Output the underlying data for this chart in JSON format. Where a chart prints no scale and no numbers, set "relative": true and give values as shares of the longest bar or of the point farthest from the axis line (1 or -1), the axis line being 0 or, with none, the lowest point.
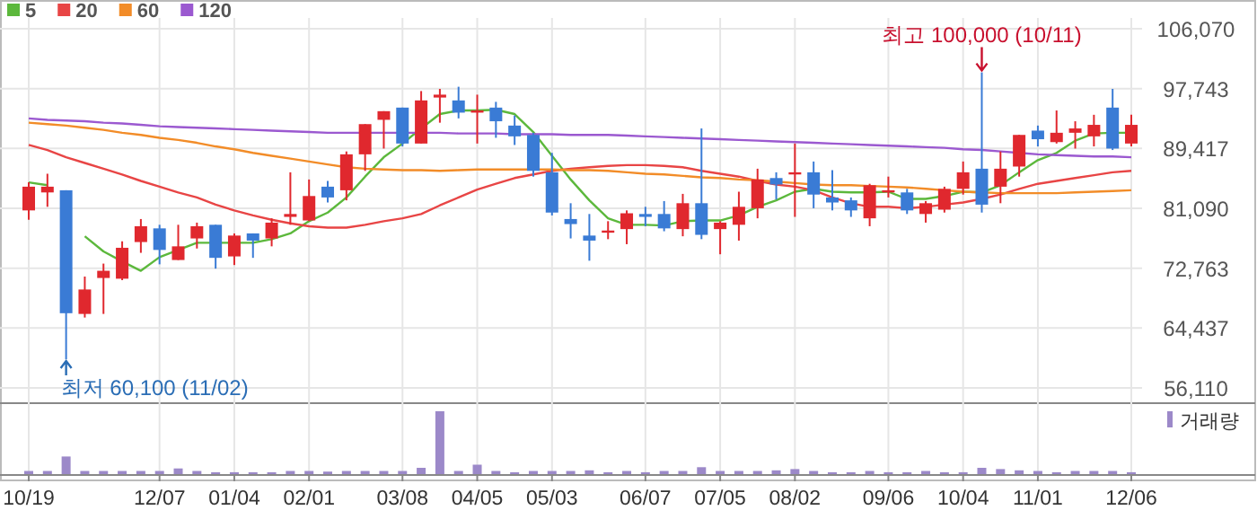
{
  "chart_data": [
    {
      "type": "candlestick",
      "grid": true,
      "legend": "top left",
      "categories": [
        "10/19",
        null,
        null,
        null,
        null,
        null,
        null,
        "12/07",
        null,
        null,
        null,
        "01/04",
        null,
        null,
        null,
        "02/01",
        null,
        null,
        null,
        null,
        "03/08",
        null,
        null,
        null,
        "04/05",
        null,
        null,
        null,
        "05/03",
        null,
        null,
        null,
        null,
        "06/07",
        null,
        null,
        null,
        "07/05",
        null,
        null,
        null,
        "08/02",
        null,
        null,
        null,
        null,
        "09/06",
        null,
        null,
        null,
        "10/04",
        null,
        null,
        null,
        "11/01",
        null,
        null,
        null,
        null,
        "12/06"
      ],
      "ylim": [
        56110,
        106070
      ],
      "yticks": [
        {
          "value": 56110,
          "label": "56,110"
        },
        {
          "value": 64437,
          "label": "64,437"
        },
        {
          "value": 72763,
          "label": "72,763"
        },
        {
          "value": 81090,
          "label": "81,090"
        },
        {
          "value": 89417,
          "label": "89,417"
        },
        {
          "value": 97743,
          "label": "97,743"
        },
        {
          "value": 106070,
          "label": "106,070"
        }
      ],
      "ohlc": [
        [
          80800,
          84700,
          79500,
          84100
        ],
        [
          83300,
          85900,
          81300,
          84100
        ],
        [
          83600,
          83600,
          60100,
          66500
        ],
        [
          66400,
          71600,
          65900,
          69800
        ],
        [
          71400,
          73400,
          66400,
          72400
        ],
        [
          71300,
          76500,
          71100,
          75600
        ],
        [
          76400,
          79600,
          74900,
          78600
        ],
        [
          78300,
          78800,
          73300,
          75300
        ],
        [
          73900,
          78800,
          73900,
          75800
        ],
        [
          76900,
          79100,
          75500,
          78600
        ],
        [
          78800,
          78800,
          72700,
          74200
        ],
        [
          74400,
          77600,
          73200,
          77300
        ],
        [
          77600,
          77600,
          74200,
          76600
        ],
        [
          76900,
          79700,
          75800,
          79100
        ],
        [
          79900,
          86100,
          78800,
          80300
        ],
        [
          79400,
          85100,
          79300,
          82800
        ],
        [
          84100,
          84900,
          81900,
          82600
        ],
        [
          83600,
          89000,
          82200,
          88600
        ],
        [
          88600,
          92800,
          86300,
          92800
        ],
        [
          93400,
          94600,
          89400,
          94600
        ],
        [
          95100,
          95100,
          89700,
          90100
        ],
        [
          90100,
          97400,
          90100,
          96100
        ],
        [
          96500,
          97700,
          93000,
          96900
        ],
        [
          96100,
          98000,
          93600,
          94400
        ],
        [
          94400,
          96900,
          90100,
          94700
        ],
        [
          95100,
          95900,
          90900,
          93200
        ],
        [
          92600,
          94000,
          89900,
          91100
        ],
        [
          91300,
          91600,
          85500,
          86300
        ],
        [
          86100,
          88800,
          80100,
          80500
        ],
        [
          79600,
          81800,
          76900,
          78900
        ],
        [
          77300,
          80300,
          73800,
          76600
        ],
        [
          77800,
          79300,
          76800,
          78000
        ],
        [
          78200,
          80800,
          76100,
          80400
        ],
        [
          80300,
          81300,
          78600,
          79900
        ],
        [
          80300,
          82100,
          77900,
          78300
        ],
        [
          78200,
          83100,
          77200,
          81800
        ],
        [
          81800,
          92200,
          76800,
          77400
        ],
        [
          78200,
          79300,
          74700,
          79100
        ],
        [
          78800,
          83400,
          76600,
          81300
        ],
        [
          81100,
          86600,
          79700,
          85100
        ],
        [
          85300,
          86100,
          82300,
          84400
        ],
        [
          85800,
          90100,
          79900,
          86100
        ],
        [
          86100,
          87600,
          81100,
          83000
        ],
        [
          82600,
          86400,
          80800,
          81900
        ],
        [
          82200,
          82600,
          79900,
          80800
        ],
        [
          79700,
          84500,
          78600,
          84300
        ],
        [
          83300,
          85500,
          82600,
          83600
        ],
        [
          83300,
          83800,
          80300,
          80800
        ],
        [
          80300,
          82100,
          79100,
          81800
        ],
        [
          80900,
          84100,
          80500,
          83800
        ],
        [
          83800,
          87600,
          83000,
          86100
        ],
        [
          86600,
          100000,
          80500,
          81600
        ],
        [
          84100,
          89000,
          81800,
          86600
        ],
        [
          86900,
          91300,
          85500,
          91300
        ],
        [
          91900,
          92600,
          89700,
          90700
        ],
        [
          90300,
          94700,
          90100,
          91600
        ],
        [
          91600,
          93200,
          89400,
          92200
        ],
        [
          91100,
          94100,
          89700,
          92700
        ],
        [
          95100,
          97700,
          89200,
          89400
        ],
        [
          90100,
          94100,
          89700,
          92700
        ]
      ],
      "series": [
        {
          "name": "5",
          "type": "line",
          "color": "#5cb83c",
          "values": [
            84700,
            84300,
            null,
            77200,
            75100,
            73700,
            72400,
            74300,
            75300,
            76300,
            76300,
            76300,
            76300,
            76800,
            77600,
            79300,
            80500,
            82600,
            85500,
            88200,
            90100,
            92200,
            94200,
            94700,
            94700,
            94800,
            94200,
            91700,
            88400,
            85100,
            82200,
            79700,
            78800,
            78800,
            78700,
            79300,
            79400,
            79400,
            80100,
            81300,
            82200,
            83400,
            83800,
            83400,
            83300,
            83300,
            83400,
            82400,
            82400,
            82800,
            83400,
            83300,
            84300,
            86100,
            87800,
            88800,
            90500,
            91500,
            91600,
            91600
          ]
        },
        {
          "name": "20",
          "type": "line",
          "color": "#e84545",
          "values": [
            89900,
            89200,
            88200,
            87400,
            86600,
            85800,
            84900,
            84100,
            83300,
            82600,
            81600,
            80800,
            80100,
            79500,
            79000,
            78600,
            78400,
            78400,
            78800,
            79300,
            79700,
            80300,
            81500,
            82600,
            83700,
            84500,
            85300,
            85800,
            86300,
            86600,
            86800,
            87000,
            87100,
            87100,
            87000,
            86800,
            86300,
            85900,
            85500,
            84900,
            84400,
            84100,
            83600,
            82600,
            81800,
            81300,
            81300,
            81100,
            81300,
            81600,
            81900,
            82400,
            83000,
            83800,
            84500,
            84900,
            85300,
            85700,
            86100,
            86300
          ]
        },
        {
          "name": "60",
          "type": "line",
          "color": "#f28c28",
          "values": [
            93000,
            92800,
            92600,
            92300,
            92000,
            91600,
            91300,
            90900,
            90600,
            90200,
            89700,
            89300,
            88800,
            88400,
            88000,
            87600,
            87200,
            86800,
            86600,
            86500,
            86400,
            86400,
            86300,
            86400,
            86500,
            86500,
            86500,
            86500,
            86500,
            86400,
            86400,
            86300,
            86100,
            85900,
            85800,
            85600,
            85400,
            85300,
            85100,
            85000,
            84800,
            84600,
            84400,
            84300,
            84300,
            84200,
            84100,
            84000,
            83800,
            83600,
            83400,
            83300,
            83200,
            83200,
            83200,
            83200,
            83300,
            83400,
            83500,
            83600
          ]
        },
        {
          "name": "120",
          "type": "line",
          "color": "#9b59d0",
          "values": [
            93600,
            93400,
            93300,
            93200,
            93000,
            92900,
            92700,
            92500,
            92400,
            92300,
            92200,
            92100,
            92000,
            91900,
            91800,
            91700,
            91600,
            91600,
            91600,
            91600,
            91600,
            91600,
            91600,
            91500,
            91500,
            91500,
            91400,
            91400,
            91400,
            91300,
            91300,
            91300,
            91200,
            91100,
            91000,
            90900,
            90800,
            90700,
            90600,
            90500,
            90400,
            90300,
            90200,
            90100,
            90000,
            89900,
            89800,
            89700,
            89600,
            89500,
            89300,
            89200,
            89000,
            88800,
            88600,
            88500,
            88400,
            88300,
            88300,
            88200
          ]
        }
      ],
      "annotations": [
        {
          "text": "최고 100,000 (10/11)",
          "y": 100000
        },
        "최저 60,100 (11/02)"
      ]
    },
    {
      "type": "bar",
      "relative": true,
      "legend": "top right",
      "categories": [
        null,
        null,
        null,
        null,
        null,
        null,
        null,
        null,
        null,
        null,
        null,
        null,
        null,
        null,
        null,
        null,
        null,
        null,
        null,
        null,
        null,
        null,
        null,
        null,
        null,
        null,
        null,
        null,
        null,
        null,
        null,
        null,
        null,
        null,
        null,
        null,
        null,
        null,
        null,
        null,
        null,
        null,
        null,
        null,
        null,
        null,
        null,
        null,
        null,
        null,
        null,
        null,
        null,
        null,
        null,
        null,
        null,
        null,
        null,
        null
      ],
      "series": [
        {
          "name": "거래량",
          "color": "#9c89c9",
          "values": [
            0.05,
            0.05,
            0.28,
            0.05,
            0.05,
            0.05,
            0.05,
            0.05,
            0.09,
            0.05,
            0.03,
            0.03,
            0.03,
            0.03,
            0.05,
            0.05,
            0.04,
            0.05,
            0.05,
            0.05,
            0.05,
            0.1,
            1,
            0.05,
            0.15,
            0.05,
            0.03,
            0.05,
            0.05,
            0.05,
            0.06,
            0.03,
            0.05,
            0.03,
            0.05,
            0.05,
            0.11,
            0.05,
            0.05,
            0.05,
            0.06,
            0.08,
            0.05,
            0.03,
            0.03,
            0.05,
            0.03,
            0.03,
            0.05,
            0.03,
            0.03,
            0.1,
            0.08,
            0.06,
            0.05,
            0.03,
            0.05,
            0.05,
            0.05,
            0.03
          ]
        }
      ]
    }
  ]
}
